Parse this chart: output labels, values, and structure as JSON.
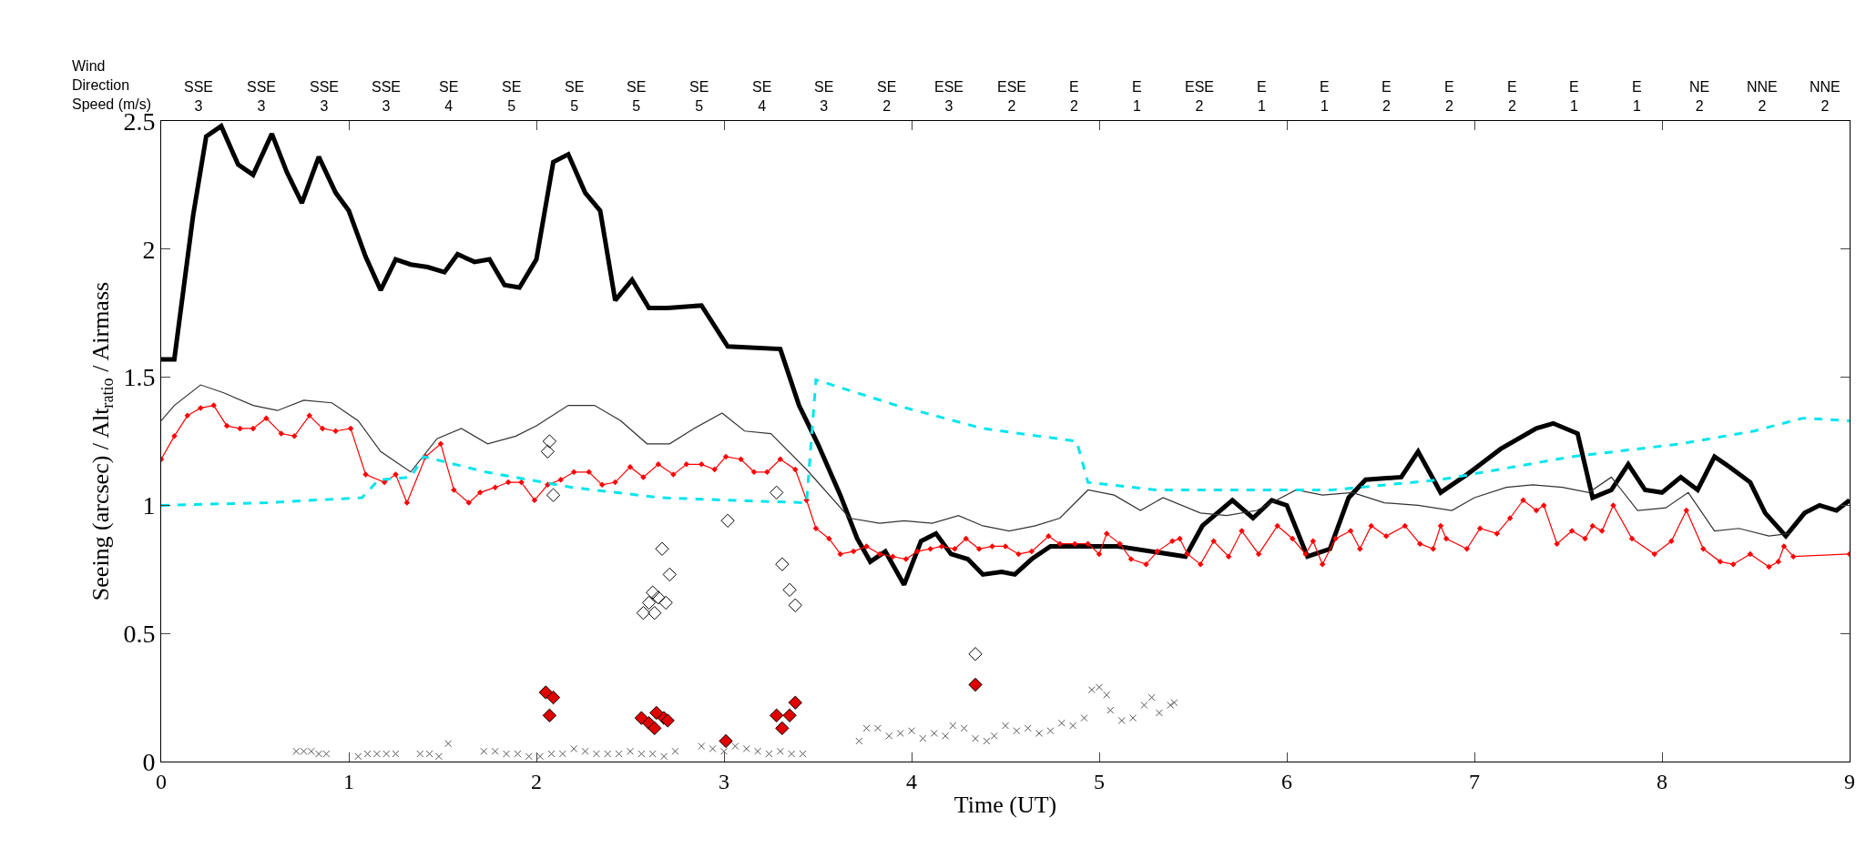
{
  "chart_data": {
    "type": "line",
    "xlabel": "Time (UT)",
    "ylabel": "Seeing (arcsec) / Alt$_{ratio}$ / Airmass",
    "x2label": "Wind\nDirection\nSpeed (m/s)",
    "xlim": [
      0,
      9
    ],
    "xticks": [
      0,
      1,
      2,
      3,
      4,
      5,
      6,
      7,
      8,
      9
    ],
    "ylim": [
      0,
      2.5
    ],
    "yticks": [
      0,
      0.5,
      1,
      1.5,
      2,
      2.5
    ],
    "annotations": [
      "SSE\n3",
      "SSE\n3",
      "SSE\n3",
      "SSE\n3",
      "SE\n4",
      "SE\n5",
      "SE\n5",
      "SE\n5",
      "SE\n5",
      "SE\n4",
      "SE\n3",
      "SE\n2",
      "ESE\n3",
      "ESE\n2",
      "E\n2",
      "E\n1",
      "ESE\n2",
      "E\n1",
      "E\n1",
      "E\n2",
      "E\n2",
      "E\n2",
      "E\n1",
      "E\n1",
      "NE\n2",
      "NNE\n2",
      "NNE\n2"
    ],
    "series": [
      {
        "color": "#000000",
        "marker": "none",
        "line_style": "solid",
        "x": [
          0,
          0.07,
          0.17,
          0.24,
          0.32,
          0.41,
          0.49,
          0.59,
          0.67,
          0.75,
          0.84,
          0.93,
          1.0,
          1.09,
          1.17,
          1.25,
          1.33,
          1.42,
          1.51,
          1.58,
          1.67,
          1.75,
          1.83,
          1.91,
          2.0,
          2.09,
          2.17,
          2.26,
          2.34,
          2.42,
          2.51,
          2.6,
          2.7,
          2.88,
          3.02,
          3.3,
          3.4,
          3.5,
          3.62,
          3.71,
          3.78,
          3.86,
          3.96,
          4.05,
          4.13,
          4.21,
          4.3,
          4.38,
          4.48,
          4.55,
          4.64,
          4.74,
          4.99,
          5.1,
          5.46,
          5.55,
          5.71,
          5.82,
          5.92,
          6.0,
          6.11,
          6.23,
          6.33,
          6.42,
          6.61,
          6.7,
          6.82,
          6.96,
          7.14,
          7.33,
          7.42,
          7.55,
          7.63,
          7.73,
          7.82,
          7.91,
          8.0,
          8.1,
          8.19,
          8.28,
          8.36,
          8.47,
          8.55,
          8.66,
          8.76,
          8.84,
          8.93,
          9.0
        ],
        "values": [
          1.57,
          1.57,
          2.13,
          2.44,
          2.48,
          2.33,
          2.29,
          2.45,
          2.3,
          2.18,
          2.36,
          2.22,
          2.15,
          1.97,
          1.84,
          1.96,
          1.94,
          1.93,
          1.91,
          1.98,
          1.95,
          1.96,
          1.86,
          1.85,
          1.96,
          2.34,
          2.37,
          2.22,
          2.15,
          1.8,
          1.88,
          1.77,
          1.77,
          1.78,
          1.62,
          1.61,
          1.39,
          1.24,
          1.04,
          0.87,
          0.78,
          0.82,
          0.69,
          0.86,
          0.89,
          0.81,
          0.79,
          0.73,
          0.74,
          0.73,
          0.79,
          0.84,
          0.84,
          0.84,
          0.8,
          0.92,
          1.02,
          0.95,
          1.02,
          1.0,
          0.8,
          0.83,
          1.03,
          1.1,
          1.11,
          1.21,
          1.05,
          1.12,
          1.22,
          1.3,
          1.32,
          1.28,
          1.03,
          1.06,
          1.16,
          1.06,
          1.05,
          1.11,
          1.06,
          1.19,
          1.15,
          1.09,
          0.97,
          0.88,
          0.97,
          1.0,
          0.98,
          1.02
        ]
      },
      {
        "color": "#333333",
        "marker": "none",
        "line_style": "solid",
        "x": [
          0,
          0.07,
          0.21,
          0.33,
          0.49,
          0.62,
          0.76,
          0.91,
          1.05,
          1.17,
          1.33,
          1.47,
          1.6,
          1.74,
          1.89,
          2.0,
          2.17,
          2.31,
          2.45,
          2.59,
          2.71,
          2.84,
          2.99,
          3.11,
          3.25,
          3.44,
          3.67,
          3.83,
          3.96,
          4.11,
          4.25,
          4.38,
          4.52,
          4.66,
          4.79,
          4.94,
          5.08,
          5.22,
          5.34,
          5.54,
          5.68,
          5.84,
          6.05,
          6.19,
          6.35,
          6.52,
          6.7,
          6.88,
          7.0,
          7.17,
          7.31,
          7.47,
          7.61,
          7.73,
          7.87,
          8.02,
          8.14,
          8.28,
          8.41,
          8.57,
          8.68
        ],
        "values": [
          1.33,
          1.39,
          1.47,
          1.44,
          1.39,
          1.37,
          1.41,
          1.4,
          1.33,
          1.21,
          1.13,
          1.26,
          1.3,
          1.24,
          1.27,
          1.31,
          1.39,
          1.39,
          1.33,
          1.24,
          1.24,
          1.3,
          1.36,
          1.29,
          1.28,
          1.14,
          0.95,
          0.93,
          0.94,
          0.93,
          0.96,
          0.92,
          0.9,
          0.92,
          0.95,
          1.06,
          1.04,
          0.98,
          1.03,
          0.97,
          0.96,
          0.98,
          1.06,
          1.04,
          1.05,
          1.01,
          1.0,
          0.98,
          1.03,
          1.07,
          1.08,
          1.07,
          1.05,
          1.11,
          0.98,
          0.99,
          1.05,
          0.9,
          0.91,
          0.88,
          0.89
        ]
      },
      {
        "color": "#ff0000",
        "marker": "diamond",
        "line_style": "solid",
        "x": [
          0,
          0.07,
          0.14,
          0.21,
          0.28,
          0.35,
          0.42,
          0.49,
          0.56,
          0.64,
          0.71,
          0.79,
          0.86,
          0.93,
          1.01,
          1.09,
          1.19,
          1.25,
          1.31,
          1.41,
          1.49,
          1.56,
          1.64,
          1.7,
          1.78,
          1.85,
          1.92,
          1.99,
          2.06,
          2.13,
          2.2,
          2.28,
          2.35,
          2.42,
          2.5,
          2.57,
          2.65,
          2.73,
          2.8,
          2.88,
          2.95,
          3.01,
          3.09,
          3.16,
          3.23,
          3.3,
          3.38,
          3.44,
          3.49,
          3.56,
          3.62,
          3.69,
          3.76,
          3.83,
          3.9,
          3.97,
          4.03,
          4.1,
          4.16,
          4.23,
          4.29,
          4.36,
          4.43,
          4.5,
          4.57,
          4.64,
          4.73,
          4.79,
          4.87,
          4.94,
          5.0,
          5.04,
          5.11,
          5.17,
          5.25,
          5.31,
          5.39,
          5.43,
          5.47,
          5.54,
          5.61,
          5.69,
          5.76,
          5.85,
          5.95,
          6.03,
          6.1,
          6.14,
          6.19,
          6.26,
          6.34,
          6.39,
          6.45,
          6.53,
          6.63,
          6.71,
          6.78,
          6.82,
          6.85,
          6.96,
          7.03,
          7.12,
          7.19,
          7.26,
          7.33,
          7.37,
          7.44,
          7.52,
          7.59,
          7.63,
          7.68,
          7.74,
          7.84,
          7.96,
          8.05,
          8.13,
          8.22,
          8.31,
          8.38,
          8.47,
          8.57,
          8.62,
          8.65,
          8.7,
          9.0
        ],
        "values": [
          1.18,
          1.27,
          1.35,
          1.38,
          1.39,
          1.31,
          1.3,
          1.3,
          1.34,
          1.28,
          1.27,
          1.35,
          1.3,
          1.29,
          1.3,
          1.12,
          1.09,
          1.12,
          1.01,
          1.19,
          1.24,
          1.06,
          1.01,
          1.05,
          1.07,
          1.09,
          1.09,
          1.02,
          1.08,
          1.1,
          1.13,
          1.13,
          1.08,
          1.09,
          1.15,
          1.11,
          1.16,
          1.12,
          1.16,
          1.16,
          1.14,
          1.19,
          1.18,
          1.13,
          1.13,
          1.18,
          1.14,
          1.02,
          0.91,
          0.87,
          0.81,
          0.82,
          0.84,
          0.81,
          0.8,
          0.79,
          0.82,
          0.83,
          0.84,
          0.83,
          0.87,
          0.83,
          0.84,
          0.84,
          0.81,
          0.82,
          0.88,
          0.85,
          0.85,
          0.85,
          0.81,
          0.89,
          0.85,
          0.79,
          0.77,
          0.82,
          0.86,
          0.87,
          0.81,
          0.77,
          0.86,
          0.8,
          0.9,
          0.81,
          0.92,
          0.87,
          0.81,
          0.86,
          0.77,
          0.87,
          0.9,
          0.83,
          0.92,
          0.88,
          0.92,
          0.85,
          0.83,
          0.92,
          0.87,
          0.83,
          0.91,
          0.89,
          0.95,
          1.02,
          0.98,
          1.0,
          0.85,
          0.9,
          0.87,
          0.92,
          0.9,
          1.0,
          0.87,
          0.81,
          0.86,
          0.98,
          0.83,
          0.78,
          0.77,
          0.81,
          0.76,
          0.78,
          0.84,
          0.8,
          0.81
        ]
      },
      {
        "color": "#00e5ee",
        "marker": "none",
        "line_style": "dashed",
        "x": [
          0,
          0.56,
          1.07,
          1.16,
          1.33,
          1.4,
          1.73,
          2.19,
          2.66,
          3.02,
          3.44,
          3.49,
          3.92,
          4.38,
          4.88,
          4.94,
          5.31,
          5.91,
          6.24,
          6.82,
          7.52,
          8.1,
          8.49,
          8.75,
          9.0
        ],
        "values": [
          1.0,
          1.01,
          1.03,
          1.1,
          1.11,
          1.19,
          1.13,
          1.07,
          1.03,
          1.02,
          1.01,
          1.49,
          1.39,
          1.3,
          1.25,
          1.09,
          1.06,
          1.06,
          1.06,
          1.1,
          1.19,
          1.24,
          1.29,
          1.34,
          1.33
        ]
      },
      {
        "type": "scatter",
        "color": "#000000",
        "marker": "diamond-open",
        "x": [
          2.07,
          2.06,
          2.09,
          2.57,
          2.63,
          2.6,
          2.62,
          2.69,
          2.65,
          2.71,
          2.67,
          3.02,
          3.28,
          3.31,
          3.35,
          3.38,
          4.34
        ],
        "values": [
          1.25,
          1.21,
          1.04,
          0.58,
          0.58,
          0.62,
          0.66,
          0.62,
          0.64,
          0.73,
          0.83,
          0.94,
          1.05,
          0.77,
          0.67,
          0.61,
          0.42
        ]
      },
      {
        "type": "scatter",
        "color": "#e00000",
        "marker": "diamond",
        "x": [
          2.05,
          2.09,
          2.07,
          2.56,
          2.6,
          2.64,
          2.68,
          2.63,
          2.7,
          3.01,
          3.28,
          3.31,
          3.35,
          3.38,
          4.34
        ],
        "values": [
          0.27,
          0.25,
          0.18,
          0.17,
          0.15,
          0.19,
          0.17,
          0.13,
          0.16,
          0.08,
          0.18,
          0.13,
          0.18,
          0.23,
          0.3
        ]
      },
      {
        "type": "scatter",
        "color": "#555555",
        "marker": "cross",
        "x": [
          0.72,
          0.76,
          0.8,
          0.84,
          0.88,
          1.05,
          1.1,
          1.15,
          1.2,
          1.25,
          1.38,
          1.43,
          1.48,
          1.53,
          1.72,
          1.78,
          1.84,
          1.9,
          1.96,
          2.02,
          2.08,
          2.14,
          2.2,
          2.26,
          2.32,
          2.38,
          2.44,
          2.5,
          2.56,
          2.62,
          2.68,
          2.74,
          2.88,
          2.94,
          3.0,
          3.06,
          3.12,
          3.18,
          3.24,
          3.3,
          3.36,
          3.42,
          3.72,
          3.76,
          3.82,
          3.88,
          3.94,
          4.0,
          4.06,
          4.12,
          4.18,
          4.22,
          4.28,
          4.34,
          4.4,
          4.44,
          4.5,
          4.56,
          4.62,
          4.68,
          4.74,
          4.8,
          4.86,
          4.92,
          4.96,
          5.0,
          5.04,
          5.06,
          5.12,
          5.18,
          5.24,
          5.28,
          5.32,
          5.38,
          5.4
        ],
        "values": [
          0.04,
          0.04,
          0.04,
          0.03,
          0.03,
          0.02,
          0.03,
          0.03,
          0.03,
          0.03,
          0.03,
          0.03,
          0.02,
          0.07,
          0.04,
          0.04,
          0.03,
          0.03,
          0.02,
          0.02,
          0.03,
          0.03,
          0.05,
          0.04,
          0.03,
          0.03,
          0.03,
          0.04,
          0.03,
          0.03,
          0.02,
          0.04,
          0.06,
          0.05,
          0.04,
          0.06,
          0.05,
          0.04,
          0.03,
          0.04,
          0.03,
          0.03,
          0.08,
          0.13,
          0.13,
          0.1,
          0.11,
          0.12,
          0.09,
          0.11,
          0.1,
          0.14,
          0.13,
          0.09,
          0.08,
          0.1,
          0.14,
          0.12,
          0.13,
          0.11,
          0.12,
          0.15,
          0.14,
          0.17,
          0.28,
          0.29,
          0.26,
          0.2,
          0.16,
          0.17,
          0.22,
          0.25,
          0.19,
          0.22,
          0.23
        ]
      }
    ]
  }
}
